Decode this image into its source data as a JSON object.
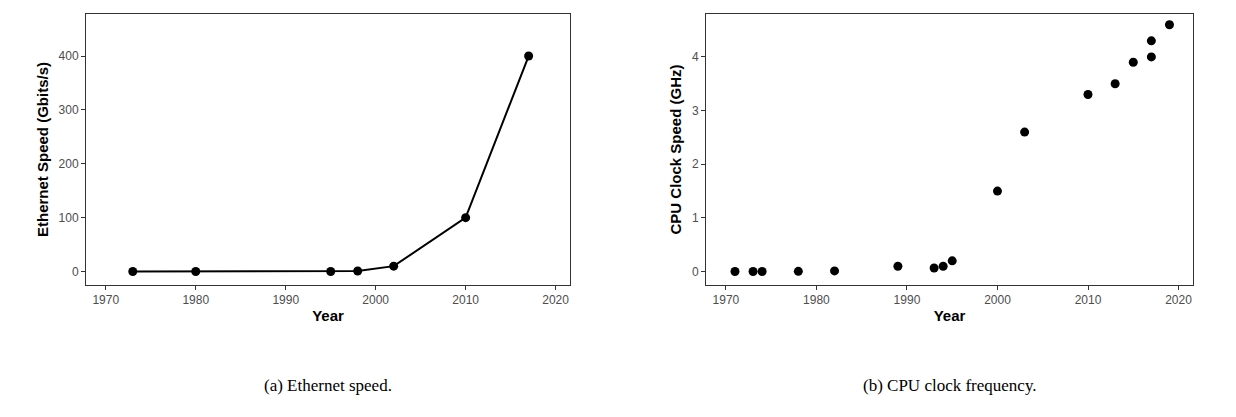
{
  "chart_data": [
    {
      "type": "line",
      "title": "(a) Ethernet speed.",
      "xlabel": "Year",
      "ylabel": "Ethernet Speed (Gbits/s)",
      "x": [
        1973,
        1980,
        1995,
        1998,
        2002,
        2010,
        2017
      ],
      "values": [
        0.003,
        0.01,
        0.1,
        1,
        10,
        100,
        400
      ],
      "color": "#000000",
      "marker": "circle",
      "xlim": [
        1967.8,
        2021.6
      ],
      "xticks": [
        1970,
        1980,
        1990,
        2000,
        2010,
        2020
      ],
      "ylim": [
        -25,
        478
      ],
      "yticks": [
        0,
        100,
        200,
        300,
        400
      ],
      "grid": false
    },
    {
      "type": "scatter",
      "title": "(b) CPU clock frequency.",
      "xlabel": "Year",
      "ylabel": "CPU Clock Speed (GHz)",
      "x": [
        1971,
        1973,
        1974,
        1978,
        1982,
        1989,
        1993,
        1994,
        1995,
        2000,
        2003,
        2010,
        2013,
        2015,
        2017,
        2017,
        2019
      ],
      "values": [
        0.001,
        0.002,
        0.002,
        0.005,
        0.012,
        0.1,
        0.066,
        0.1,
        0.2,
        1.5,
        2.6,
        3.3,
        3.5,
        3.9,
        4.0,
        4.3,
        4.6
      ],
      "color": "#000000",
      "marker": "circle",
      "xlim": [
        1967.8,
        2021.6
      ],
      "xticks": [
        1970,
        1980,
        1990,
        2000,
        2010,
        2020
      ],
      "ylim": [
        -0.25,
        4.8
      ],
      "yticks": [
        0,
        1,
        2,
        3,
        4
      ],
      "grid": false
    }
  ]
}
